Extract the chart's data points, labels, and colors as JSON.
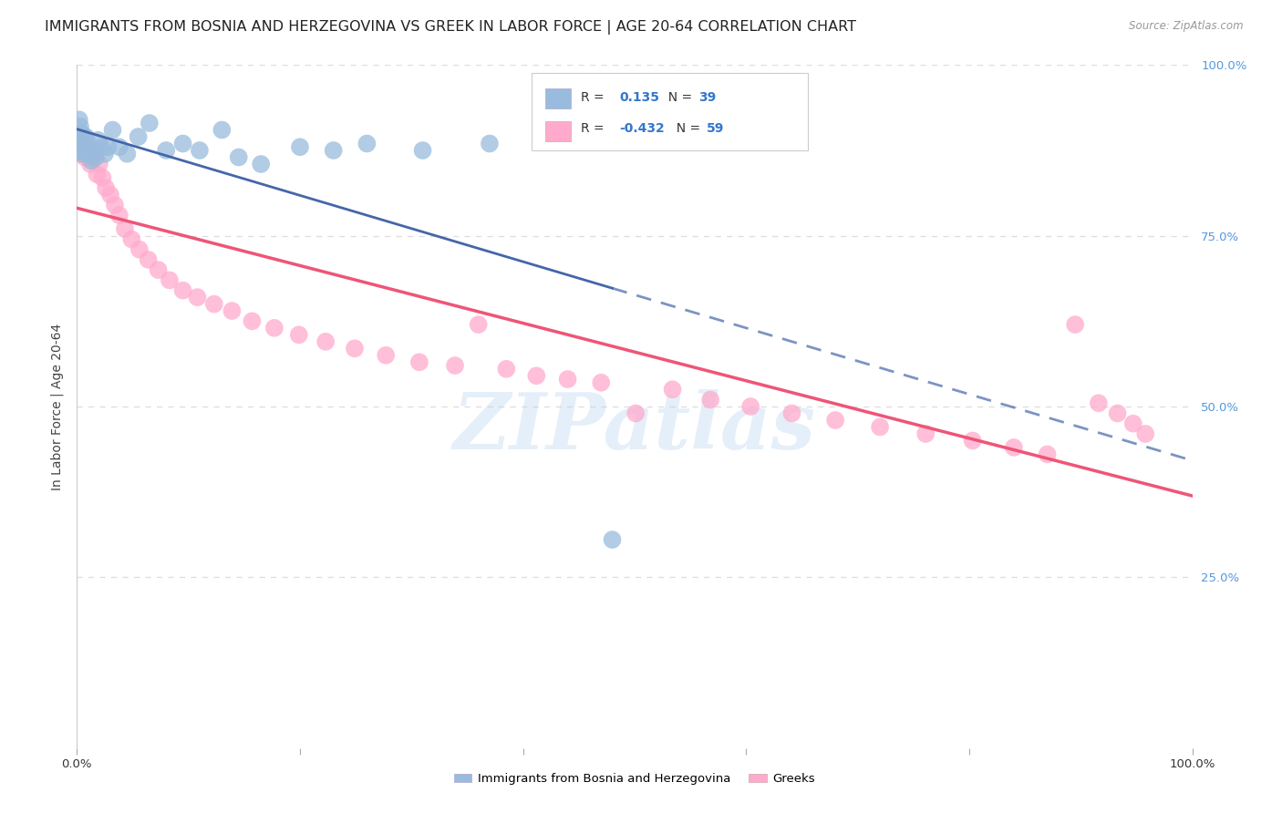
{
  "title": "IMMIGRANTS FROM BOSNIA AND HERZEGOVINA VS GREEK IN LABOR FORCE | AGE 20-64 CORRELATION CHART",
  "source": "Source: ZipAtlas.com",
  "ylabel": "In Labor Force | Age 20-64",
  "xlim": [
    0.0,
    1.0
  ],
  "ylim": [
    0.0,
    1.0
  ],
  "y_tick_labels_right": [
    "100.0%",
    "75.0%",
    "50.0%",
    "25.0%"
  ],
  "y_tick_positions_right": [
    1.0,
    0.75,
    0.5,
    0.25
  ],
  "blue_color": "#99BBDD",
  "pink_color": "#FFAACC",
  "blue_line_color": "#4466AA",
  "pink_line_color": "#EE5577",
  "background_color": "#FFFFFF",
  "grid_color": "#DDDDDD",
  "title_fontsize": 11.5,
  "axis_label_fontsize": 10,
  "tick_fontsize": 9.5,
  "bosnia_x": [
    0.001,
    0.002,
    0.002,
    0.003,
    0.003,
    0.004,
    0.004,
    0.005,
    0.005,
    0.006,
    0.007,
    0.008,
    0.009,
    0.01,
    0.011,
    0.013,
    0.015,
    0.017,
    0.019,
    0.022,
    0.025,
    0.028,
    0.032,
    0.038,
    0.045,
    0.055,
    0.065,
    0.08,
    0.095,
    0.11,
    0.13,
    0.145,
    0.165,
    0.2,
    0.23,
    0.26,
    0.31,
    0.37,
    0.48
  ],
  "bosnia_y": [
    0.875,
    0.92,
    0.895,
    0.91,
    0.885,
    0.9,
    0.875,
    0.89,
    0.87,
    0.895,
    0.88,
    0.895,
    0.875,
    0.885,
    0.87,
    0.86,
    0.875,
    0.865,
    0.89,
    0.88,
    0.87,
    0.88,
    0.905,
    0.88,
    0.87,
    0.895,
    0.915,
    0.875,
    0.885,
    0.875,
    0.905,
    0.865,
    0.855,
    0.88,
    0.875,
    0.885,
    0.875,
    0.885,
    0.305
  ],
  "greek_x": [
    0.001,
    0.002,
    0.003,
    0.004,
    0.005,
    0.006,
    0.007,
    0.008,
    0.009,
    0.01,
    0.012,
    0.014,
    0.016,
    0.018,
    0.02,
    0.023,
    0.026,
    0.03,
    0.034,
    0.038,
    0.043,
    0.049,
    0.056,
    0.064,
    0.073,
    0.083,
    0.095,
    0.108,
    0.123,
    0.139,
    0.157,
    0.177,
    0.199,
    0.223,
    0.249,
    0.277,
    0.307,
    0.339,
    0.36,
    0.385,
    0.412,
    0.44,
    0.47,
    0.501,
    0.534,
    0.568,
    0.604,
    0.641,
    0.68,
    0.72,
    0.761,
    0.803,
    0.84,
    0.87,
    0.895,
    0.916,
    0.933,
    0.947,
    0.958
  ],
  "greek_y": [
    0.875,
    0.88,
    0.885,
    0.87,
    0.89,
    0.875,
    0.865,
    0.88,
    0.87,
    0.875,
    0.855,
    0.865,
    0.87,
    0.84,
    0.855,
    0.835,
    0.82,
    0.81,
    0.795,
    0.78,
    0.76,
    0.745,
    0.73,
    0.715,
    0.7,
    0.685,
    0.67,
    0.66,
    0.65,
    0.64,
    0.625,
    0.615,
    0.605,
    0.595,
    0.585,
    0.575,
    0.565,
    0.56,
    0.62,
    0.555,
    0.545,
    0.54,
    0.535,
    0.49,
    0.525,
    0.51,
    0.5,
    0.49,
    0.48,
    0.47,
    0.46,
    0.45,
    0.44,
    0.43,
    0.62,
    0.505,
    0.49,
    0.475,
    0.46
  ],
  "watermark_text": "ZIPatlas",
  "watermark_color": "#AACCEE",
  "watermark_alpha": 0.3,
  "r_bosnia": 0.135,
  "n_bosnia": 39,
  "r_greek": -0.432,
  "n_greek": 59
}
